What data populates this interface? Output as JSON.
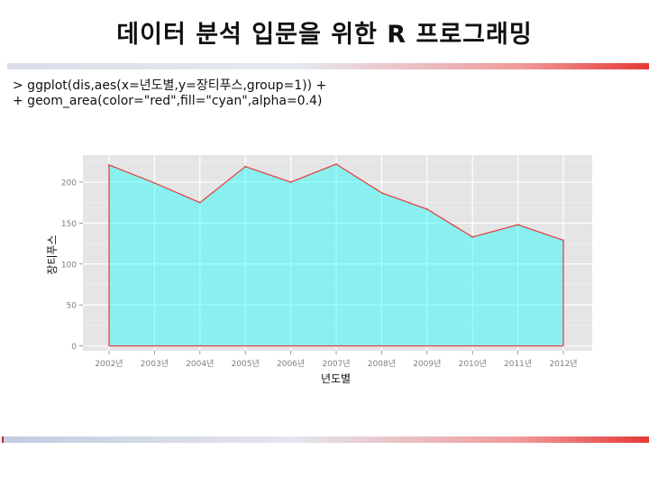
{
  "slide": {
    "title": "데이터 분석 입문을 위한 R 프로그래밍",
    "code_lines": [
      "> ggplot(dis,aes(x=년도별,y=장티푸스,group=1)) +",
      "+ geom_area(color=\"red\",fill=\"cyan\",alpha=0.4)"
    ]
  },
  "chart_data": {
    "type": "area",
    "x": [
      "2002년",
      "2003년",
      "2004년",
      "2005년",
      "2006년",
      "2007년",
      "2008년",
      "2009년",
      "2010년",
      "2011년",
      "2012년"
    ],
    "values": [
      221,
      199,
      175,
      219,
      200,
      222,
      187,
      167,
      133,
      148,
      129
    ],
    "xlabel": "년도별",
    "ylabel": "장티푸스",
    "ylim": [
      -6,
      233
    ],
    "yticks": [
      0,
      50,
      100,
      150,
      200
    ],
    "grid": true,
    "colors": {
      "panel": "#e5e5e5",
      "grid_major": "#ffffff",
      "grid_minor": "#f1f1f1",
      "line": "#e53935",
      "fill": "#00ffff",
      "fill_alpha": 0.4,
      "tick_text": "#7f7f7f",
      "axis_title": "#111111"
    }
  }
}
